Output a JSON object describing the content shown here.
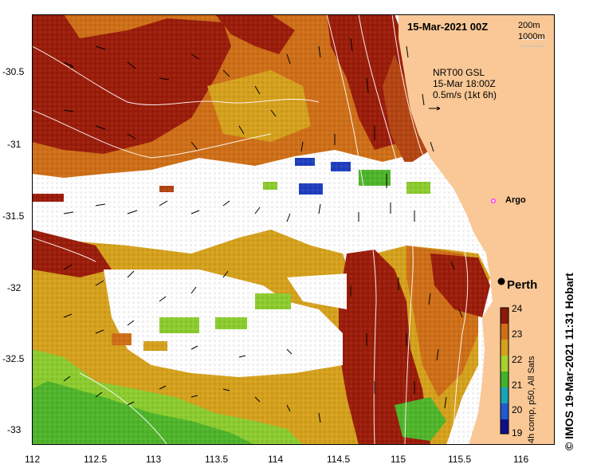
{
  "map": {
    "date_title": "15-Mar-2021 00Z",
    "contours": [
      "200m",
      "1000m"
    ],
    "source_lines": [
      "NRT00 GSL",
      "15-Mar 18:00Z",
      "0.5m/s (1kt 6h)"
    ],
    "argo_label": "Argo",
    "city_label": "Perth",
    "credit": "© IMOS 19-Mar-2021 11:31 Hobart",
    "colorbar_caption": "4h comp, p50, All Sats",
    "colorbar_ticks": [
      "24",
      "23",
      "22",
      "21",
      "20",
      "19"
    ],
    "colors": {
      "land": "#f9c896",
      "hot": "#9b1c0a",
      "warm": "#cf6f17",
      "mid": "#d6a11c",
      "cool": "#8ccc2f",
      "green": "#4fb52a"
    }
  },
  "axes": {
    "x_ticks": [
      "112",
      "112.5",
      "113",
      "113.5",
      "114",
      "114.5",
      "115",
      "115.5",
      "116"
    ],
    "y_ticks": [
      "-30.5",
      "-31",
      "-31.5",
      "-32",
      "-32.5",
      "-33"
    ]
  }
}
